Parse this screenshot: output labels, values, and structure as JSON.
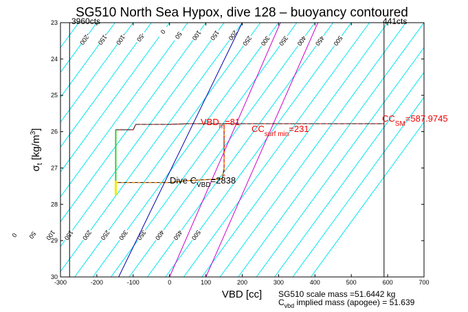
{
  "chart_data": {
    "type": "line",
    "title": "SG510 North Sea Hypox, dive 128 – buoyancy contoured",
    "xlabel": "VBD [cc]",
    "ylabel": "σ",
    "ylabel_sub": "t",
    "ylabel_unit_a": " [kg/m",
    "ylabel_unit_sup": "3",
    "ylabel_unit_b": "]",
    "xlim": [
      -300,
      700
    ],
    "ylim": [
      23,
      30
    ],
    "y_reversed": true,
    "x_ticks": [
      "-300",
      "-200",
      "-100",
      "0",
      "100",
      "200",
      "300",
      "400",
      "500",
      "600",
      "700"
    ],
    "y_ticks": [
      "23",
      "24",
      "25",
      "26",
      "27",
      "28",
      "29",
      "30"
    ],
    "corner_left_label": "3960cts",
    "corner_right_label": "441cts",
    "contour_levels": [
      -500,
      -450,
      -400,
      -350,
      -300,
      -250,
      -200,
      -150,
      -100,
      -50,
      0,
      50,
      100,
      150,
      200,
      250,
      300,
      350,
      400,
      450,
      500,
      550,
      600,
      650,
      700,
      750,
      800,
      850,
      900
    ],
    "contour_labels_upper": [
      {
        "v": -450,
        "s": 23.95
      },
      {
        "v": -400,
        "s": 24.45
      },
      {
        "v": -350,
        "s": 25.25
      },
      {
        "v": -300,
        "s": 25.95
      },
      {
        "v": -250,
        "s": 26.8
      },
      {
        "v": -200,
        "s": 23.45
      },
      {
        "v": -150,
        "s": 23.45
      },
      {
        "v": -100,
        "s": 23.45
      },
      {
        "v": -50,
        "s": 23.4
      },
      {
        "v": 0,
        "s": 23.25
      },
      {
        "v": 50,
        "s": 23.35
      },
      {
        "v": 100,
        "s": 23.35
      },
      {
        "v": 150,
        "s": 23.35
      },
      {
        "v": 200,
        "s": 23.35
      },
      {
        "v": 250,
        "s": 23.5
      },
      {
        "v": 300,
        "s": 23.5
      },
      {
        "v": 350,
        "s": 23.5
      },
      {
        "v": 400,
        "s": 23.5
      },
      {
        "v": 450,
        "s": 23.5
      },
      {
        "v": 500,
        "s": 23.5
      }
    ],
    "contour_labels_lower": [
      {
        "v": -200,
        "s": 28.85
      },
      {
        "v": -150,
        "s": 28.85
      },
      {
        "v": -100,
        "s": 28.85
      },
      {
        "v": -50,
        "s": 28.85
      },
      {
        "v": 0,
        "s": 28.85
      },
      {
        "v": 50,
        "s": 28.85
      },
      {
        "v": 100,
        "s": 28.85
      },
      {
        "v": 150,
        "s": 28.85
      },
      {
        "v": 200,
        "s": 28.85
      },
      {
        "v": 250,
        "s": 28.85
      },
      {
        "v": 300,
        "s": 28.85
      },
      {
        "v": 350,
        "s": 28.85
      },
      {
        "v": 400,
        "s": 28.85
      },
      {
        "v": 450,
        "s": 28.85
      },
      {
        "v": 500,
        "s": 28.85
      }
    ],
    "reference_lines": [
      {
        "name": "dive C_VBD",
        "color": "#0000aa",
        "x_at_top": 200,
        "x_at_bottom": -140
      },
      {
        "name": "C_SM",
        "color": "#cc00cc",
        "x_at_top": 305,
        "x_at_bottom": 0
      },
      {
        "name": "C_surf min",
        "color": "#cc00cc",
        "x_at_top": 408,
        "x_at_bottom": 100
      }
    ],
    "vertical_lines": [
      {
        "name": "3960cts limit",
        "x": -275
      },
      {
        "name": "441cts limit",
        "x": 590
      }
    ],
    "profile_dive": [
      [
        -148,
        27.4
      ],
      [
        -100,
        27.4
      ],
      [
        -50,
        27.4
      ],
      [
        0,
        27.4
      ],
      [
        50,
        27.35
      ],
      [
        100,
        27.32
      ],
      [
        145,
        27.3
      ],
      [
        150,
        27.0
      ],
      [
        150,
        26.5
      ],
      [
        150,
        26.0
      ],
      [
        150,
        25.8
      ]
    ],
    "profile_climb": [
      [
        -148,
        27.4
      ],
      [
        -148,
        26.9
      ],
      [
        -148,
        26.4
      ],
      [
        -148,
        25.95
      ],
      [
        -100,
        25.95
      ],
      [
        -93,
        25.8
      ],
      [
        -50,
        25.8
      ],
      [
        0,
        25.8
      ],
      [
        50,
        25.78
      ],
      [
        100,
        25.78
      ],
      [
        150,
        25.78
      ],
      [
        200,
        25.78
      ],
      [
        300,
        25.78
      ],
      [
        400,
        25.78
      ],
      [
        500,
        25.78
      ],
      [
        560,
        25.78
      ],
      [
        590,
        25.78
      ]
    ],
    "green_segment": {
      "x": -148,
      "s_start": 25.95,
      "s_end": 27.35
    },
    "yellow_segment": {
      "x": -148,
      "s_start": 27.35,
      "s_end": 27.75
    },
    "annotations": {
      "vbd": {
        "main": "VBD",
        "sub": "m",
        "tail": "=81",
        "x": 93,
        "s": 25.8
      },
      "cc_surf": {
        "main": "CC",
        "sub": "surf min",
        "tail": "=231",
        "x": 225,
        "s": 25.92
      },
      "cc_sm": {
        "main": "CC",
        "sub": "SM",
        "tail": "=587.9745",
        "x": 587,
        "s": 25.8
      },
      "dive_c": {
        "main": "Dive C",
        "sub": "VBD",
        "tail": "=2838",
        "x": 0,
        "s": 27.35
      }
    },
    "footer_line1": "SG510 scale mass =51.6442 kg",
    "footer_line2_main": "C",
    "footer_line2_sub": "vbd",
    "footer_line2_tail": " implied mass (apogee) = 51.639",
    "colors": {
      "contour": "#00e5ee",
      "profile": "#000000",
      "annotation": "#ee0000",
      "dive_line": "#0000aa",
      "magenta": "#cc00cc",
      "green": "#33cc33",
      "yellow": "#eeee00",
      "orange": "#ff8800"
    }
  }
}
